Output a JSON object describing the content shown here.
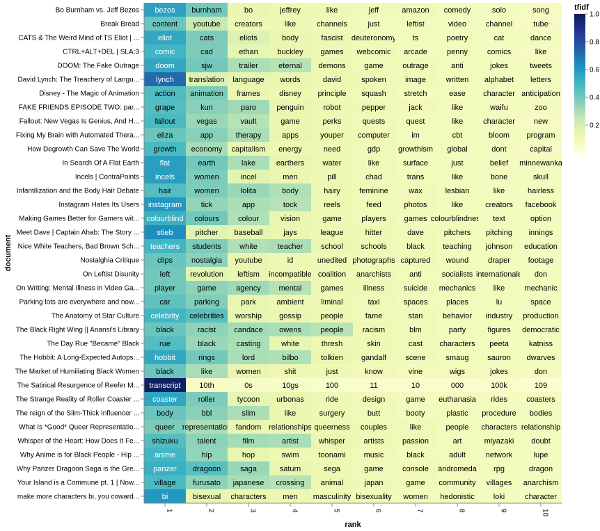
{
  "chart_data": {
    "type": "heatmap",
    "title": "",
    "xlabel": "rank",
    "ylabel": "document",
    "legend": {
      "title": "tfidf",
      "placement": "top-right",
      "ticks": [
        0.2,
        0.4,
        0.6,
        0.8,
        1.0
      ],
      "tick_labels": [
        "0.2",
        "0.4",
        "0.6",
        "0.8",
        "1.0"
      ],
      "range": [
        0.0,
        1.0
      ]
    },
    "color_scheme": {
      "name": "yellowgreenblue",
      "stops": [
        "#ffffd9",
        "#edf8b1",
        "#c7e9b4",
        "#7fcdbb",
        "#41b6c4",
        "#1d91c0",
        "#225ea8",
        "#253494",
        "#081d58"
      ]
    },
    "x": [
      "1",
      "2",
      "3",
      "4",
      "5",
      "6",
      "7",
      "8",
      "9",
      "10"
    ],
    "documents": [
      "Bo Burnham vs. Jeff Bezos",
      "Break Bread",
      "CATS & The Weird Mind of TS Eliot | ...",
      "CTRL+ALT+DEL | SLA:3",
      "DOOM: The Fake Outrage",
      "David Lynch: The Treachery of Langu...",
      "Disney - The Magic of Animation",
      "FAKE FRIENDS EPISODE TWO: par...",
      "Fallout: New Vegas Is Genius, And H...",
      "Fixing My Brain with Automated Thera...",
      "How Degrowth Can Save The World",
      "In Search Of A Flat Earth",
      "Incels | ContraPoints",
      "Infantilization and the Body Hair Debate",
      "Instagram Hates Its Users",
      "Making Games Better for Gamers wit...",
      "Meet Dave | Captain Ahab: The Story ...",
      "Nice White Teachers, Bad Brown Sch...",
      "Nostalghia Critique",
      "On Leftist Disunity",
      "On Writing: Mental Illness in Video Ga...",
      "Parking lots are everywhere and now...",
      "The Anatomy of Star Culture",
      "The Black Right Wing || Anansi's Library",
      "The Day Rue \"Became\" Black",
      "The Hobbit: A Long-Expected Autops...",
      "The Market of Humiliating Black Women",
      "The Satirical Resurgence of Reefer M...",
      "The Strange Reality of Roller Coaster ...",
      "The reign of the Slim-Thick Influencer ...",
      "What Is *Good* Queer Representatio...",
      "Whisper of the Heart: How Does It Fe...",
      "Why Anime is for Black People - Hip ...",
      "Why Panzer Dragoon Saga is the Gre...",
      "Your Island is a Commune pt. 1 | Now...",
      "make more characters bi, you coward..."
    ],
    "words": [
      [
        "bezos",
        "burnham",
        "bo",
        "jeffrey",
        "like",
        "jeff",
        "amazon",
        "comedy",
        "solo",
        "song"
      ],
      [
        "content",
        "youtube",
        "creators",
        "like",
        "channels",
        "just",
        "leftist",
        "video",
        "channel",
        "tube"
      ],
      [
        "eliot",
        "cats",
        "eliots",
        "body",
        "fascist",
        "deuteronomy",
        "ts",
        "poetry",
        "cat",
        "dance"
      ],
      [
        "comic",
        "cad",
        "ethan",
        "buckley",
        "games",
        "webcomic",
        "arcade",
        "penny",
        "comics",
        "like"
      ],
      [
        "doom",
        "sjw",
        "trailer",
        "eternal",
        "demons",
        "game",
        "outrage",
        "anti",
        "jokes",
        "tweets"
      ],
      [
        "lynch",
        "translation",
        "language",
        "words",
        "david",
        "spoken",
        "image",
        "written",
        "alphabet",
        "letters"
      ],
      [
        "action",
        "animation",
        "frames",
        "disney",
        "principle",
        "squash",
        "stretch",
        "ease",
        "character",
        "anticipation"
      ],
      [
        "grape",
        "kun",
        "paro",
        "penguin",
        "robot",
        "pepper",
        "jack",
        "like",
        "waifu",
        "zoo"
      ],
      [
        "fallout",
        "vegas",
        "vault",
        "game",
        "perks",
        "quests",
        "quest",
        "like",
        "character",
        "new"
      ],
      [
        "eliza",
        "app",
        "therapy",
        "apps",
        "youper",
        "computer",
        "im",
        "cbt",
        "bloom",
        "program"
      ],
      [
        "growth",
        "economy",
        "capitalism",
        "energy",
        "need",
        "gdp",
        "growthism",
        "global",
        "dont",
        "capital"
      ],
      [
        "flat",
        "earth",
        "lake",
        "earthers",
        "water",
        "like",
        "surface",
        "just",
        "belief",
        "minnewanka"
      ],
      [
        "incels",
        "women",
        "incel",
        "men",
        "pill",
        "chad",
        "trans",
        "like",
        "bone",
        "skull"
      ],
      [
        "hair",
        "women",
        "lolita",
        "body",
        "hairy",
        "feminine",
        "wax",
        "lesbian",
        "like",
        "hairless"
      ],
      [
        "instagram",
        "tick",
        "app",
        "tock",
        "reels",
        "feed",
        "photos",
        "like",
        "creators",
        "facebook"
      ],
      [
        "colourblind",
        "colours",
        "colour",
        "vision",
        "game",
        "players",
        "games",
        "colourblindness",
        "text",
        "option"
      ],
      [
        "stieb",
        "pitcher",
        "baseball",
        "jays",
        "league",
        "hitter",
        "dave",
        "pitchers",
        "pitching",
        "innings"
      ],
      [
        "teachers",
        "students",
        "white",
        "teacher",
        "school",
        "schools",
        "black",
        "teaching",
        "johnson",
        "education"
      ],
      [
        "clips",
        "nostalgia",
        "youtube",
        "id",
        "unedited",
        "photographs",
        "captured",
        "wound",
        "draper",
        "footage"
      ],
      [
        "left",
        "revolution",
        "leftism",
        "incompatible",
        "coalition",
        "anarchists",
        "anti",
        "socialists",
        "internationale",
        "don"
      ],
      [
        "player",
        "game",
        "agency",
        "mental",
        "games",
        "illness",
        "suicide",
        "mechanics",
        "like",
        "mechanic"
      ],
      [
        "car",
        "parking",
        "park",
        "ambient",
        "liminal",
        "taxi",
        "spaces",
        "places",
        "lu",
        "space"
      ],
      [
        "celebrity",
        "celebrities",
        "worship",
        "gossip",
        "people",
        "fame",
        "stan",
        "behavior",
        "industry",
        "production"
      ],
      [
        "black",
        "racist",
        "candace",
        "owens",
        "people",
        "racism",
        "blm",
        "party",
        "figures",
        "democratic"
      ],
      [
        "rue",
        "black",
        "casting",
        "white",
        "thresh",
        "skin",
        "cast",
        "characters",
        "peeta",
        "katniss"
      ],
      [
        "hobbit",
        "rings",
        "lord",
        "bilbo",
        "tolkien",
        "gandalf",
        "scene",
        "smaug",
        "sauron",
        "dwarves"
      ],
      [
        "black",
        "like",
        "women",
        "shit",
        "just",
        "know",
        "vine",
        "wigs",
        "jokes",
        "don"
      ],
      [
        "transcript",
        "10th",
        "0s",
        "10gs",
        "100",
        "11",
        "10",
        "000",
        "100k",
        "109"
      ],
      [
        "coaster",
        "roller",
        "tycoon",
        "urbonas",
        "ride",
        "design",
        "game",
        "euthanasia",
        "rides",
        "coasters"
      ],
      [
        "body",
        "bbl",
        "slim",
        "like",
        "surgery",
        "butt",
        "booty",
        "plastic",
        "procedure",
        "bodies"
      ],
      [
        "queer",
        "representation",
        "fandom",
        "relationships",
        "queerness",
        "couples",
        "like",
        "people",
        "characters",
        "relationship"
      ],
      [
        "shizuku",
        "talent",
        "film",
        "artist",
        "whisper",
        "artists",
        "passion",
        "art",
        "miyazaki",
        "doubt"
      ],
      [
        "anime",
        "hip",
        "hop",
        "swim",
        "toonami",
        "music",
        "black",
        "adult",
        "network",
        "lupe"
      ],
      [
        "panzer",
        "dragoon",
        "saga",
        "saturn",
        "sega",
        "game",
        "console",
        "andromeda",
        "rpg",
        "dragon"
      ],
      [
        "village",
        "furusato",
        "japanese",
        "crossing",
        "animal",
        "japan",
        "game",
        "community",
        "villages",
        "anarchism"
      ],
      [
        "bi",
        "bisexual",
        "characters",
        "men",
        "masculinity",
        "bisexuality",
        "women",
        "hedonistic",
        "loki",
        "character"
      ]
    ],
    "values": [
      [
        0.57,
        0.4,
        0.13,
        0.12,
        0.11,
        0.1,
        0.1,
        0.09,
        0.08,
        0.07
      ],
      [
        0.42,
        0.25,
        0.12,
        0.11,
        0.1,
        0.09,
        0.09,
        0.08,
        0.08,
        0.07
      ],
      [
        0.55,
        0.38,
        0.18,
        0.13,
        0.11,
        0.1,
        0.09,
        0.09,
        0.08,
        0.08
      ],
      [
        0.5,
        0.38,
        0.15,
        0.13,
        0.11,
        0.1,
        0.09,
        0.09,
        0.08,
        0.07
      ],
      [
        0.55,
        0.4,
        0.3,
        0.28,
        0.12,
        0.1,
        0.1,
        0.09,
        0.08,
        0.08
      ],
      [
        0.72,
        0.18,
        0.15,
        0.13,
        0.12,
        0.11,
        0.1,
        0.09,
        0.09,
        0.08
      ],
      [
        0.47,
        0.38,
        0.13,
        0.12,
        0.11,
        0.1,
        0.09,
        0.09,
        0.08,
        0.08
      ],
      [
        0.46,
        0.36,
        0.32,
        0.14,
        0.12,
        0.11,
        0.1,
        0.09,
        0.08,
        0.08
      ],
      [
        0.48,
        0.33,
        0.28,
        0.13,
        0.11,
        0.1,
        0.09,
        0.09,
        0.08,
        0.07
      ],
      [
        0.42,
        0.36,
        0.3,
        0.14,
        0.12,
        0.1,
        0.09,
        0.09,
        0.08,
        0.08
      ],
      [
        0.48,
        0.31,
        0.14,
        0.12,
        0.11,
        0.1,
        0.09,
        0.09,
        0.08,
        0.07
      ],
      [
        0.58,
        0.4,
        0.3,
        0.14,
        0.12,
        0.1,
        0.09,
        0.09,
        0.08,
        0.08
      ],
      [
        0.58,
        0.38,
        0.16,
        0.13,
        0.11,
        0.1,
        0.09,
        0.09,
        0.08,
        0.08
      ],
      [
        0.46,
        0.38,
        0.33,
        0.29,
        0.12,
        0.11,
        0.1,
        0.09,
        0.08,
        0.08
      ],
      [
        0.6,
        0.34,
        0.3,
        0.28,
        0.12,
        0.1,
        0.1,
        0.09,
        0.08,
        0.08
      ],
      [
        0.52,
        0.4,
        0.29,
        0.14,
        0.11,
        0.1,
        0.09,
        0.09,
        0.08,
        0.08
      ],
      [
        0.63,
        0.17,
        0.15,
        0.13,
        0.12,
        0.11,
        0.1,
        0.09,
        0.09,
        0.08
      ],
      [
        0.5,
        0.38,
        0.29,
        0.3,
        0.13,
        0.11,
        0.1,
        0.09,
        0.09,
        0.08
      ],
      [
        0.42,
        0.35,
        0.14,
        0.12,
        0.11,
        0.1,
        0.1,
        0.09,
        0.09,
        0.08
      ],
      [
        0.4,
        0.16,
        0.14,
        0.12,
        0.11,
        0.1,
        0.09,
        0.09,
        0.08,
        0.08
      ],
      [
        0.4,
        0.35,
        0.32,
        0.28,
        0.12,
        0.11,
        0.1,
        0.09,
        0.09,
        0.08
      ],
      [
        0.44,
        0.37,
        0.14,
        0.12,
        0.11,
        0.1,
        0.09,
        0.09,
        0.08,
        0.08
      ],
      [
        0.5,
        0.45,
        0.15,
        0.13,
        0.12,
        0.1,
        0.1,
        0.09,
        0.09,
        0.08
      ],
      [
        0.42,
        0.35,
        0.31,
        0.3,
        0.28,
        0.12,
        0.1,
        0.09,
        0.09,
        0.08
      ],
      [
        0.46,
        0.33,
        0.3,
        0.14,
        0.12,
        0.11,
        0.1,
        0.09,
        0.08,
        0.08
      ],
      [
        0.55,
        0.4,
        0.3,
        0.29,
        0.13,
        0.11,
        0.1,
        0.09,
        0.09,
        0.08
      ],
      [
        0.42,
        0.3,
        0.14,
        0.12,
        0.11,
        0.1,
        0.09,
        0.09,
        0.08,
        0.08
      ],
      [
        0.98,
        0.06,
        0.05,
        0.05,
        0.04,
        0.04,
        0.04,
        0.04,
        0.04,
        0.03
      ],
      [
        0.56,
        0.38,
        0.15,
        0.13,
        0.11,
        0.1,
        0.09,
        0.09,
        0.08,
        0.08
      ],
      [
        0.42,
        0.36,
        0.3,
        0.13,
        0.11,
        0.1,
        0.09,
        0.09,
        0.08,
        0.08
      ],
      [
        0.38,
        0.3,
        0.14,
        0.13,
        0.12,
        0.11,
        0.1,
        0.09,
        0.09,
        0.08
      ],
      [
        0.46,
        0.35,
        0.31,
        0.3,
        0.13,
        0.11,
        0.1,
        0.09,
        0.09,
        0.08
      ],
      [
        0.5,
        0.34,
        0.14,
        0.12,
        0.11,
        0.1,
        0.09,
        0.09,
        0.08,
        0.08
      ],
      [
        0.52,
        0.45,
        0.33,
        0.14,
        0.12,
        0.1,
        0.1,
        0.09,
        0.09,
        0.08
      ],
      [
        0.48,
        0.35,
        0.3,
        0.28,
        0.12,
        0.11,
        0.1,
        0.09,
        0.08,
        0.08
      ],
      [
        0.6,
        0.14,
        0.13,
        0.12,
        0.11,
        0.1,
        0.09,
        0.09,
        0.08,
        0.08
      ]
    ]
  }
}
